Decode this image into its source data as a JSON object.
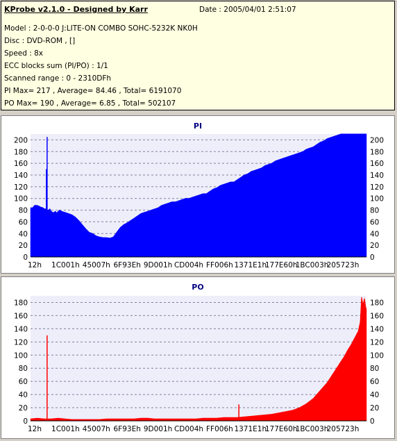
{
  "info": {
    "title": "KProbe v2.1.0 - Designed by Karr",
    "date": "Date : 2005/04/01 2:51:07",
    "lines": [
      "Model : 2-0-0-0 J:LITE-ON COMBO SOHC-5232K NK0H",
      "Disc : DVD-ROM ,  []",
      "Speed : 8x",
      "ECC blocks sum (PI/PO) : 1/1",
      "Scanned range : 0 - 2310DFh",
      "PI Max= 217 , Average= 84.46 , Total= 6191070",
      "PO Max= 190 , Average= 6.85 , Total= 502107"
    ]
  },
  "colors": {
    "pi": "#0000ff",
    "po": "#ff0000",
    "plot_bg": "#eeeefa",
    "title": "#000080"
  },
  "chart_data": [
    {
      "type": "area",
      "title": "PI",
      "x_tick_labels": [
        "12h",
        "1C001h",
        "45007h",
        "6F93Eh",
        "9D001h",
        "CD004h",
        "FF006h",
        "1371E1h",
        "177E60h",
        "1BC003h",
        "205723h"
      ],
      "ylim": [
        0,
        210
      ],
      "y_ticks": [
        0,
        20,
        40,
        60,
        80,
        100,
        120,
        140,
        160,
        180,
        200
      ],
      "grid": true,
      "series": [
        {
          "x": [
            0,
            3,
            6,
            9,
            12,
            15,
            18,
            20,
            22,
            24,
            26,
            28,
            30,
            32,
            34,
            36,
            38,
            40,
            42,
            45,
            50,
            55,
            60,
            65,
            70,
            75,
            80,
            85,
            90,
            95,
            100,
            105,
            110,
            115,
            120,
            125,
            130,
            135,
            140,
            145,
            150,
            155,
            160,
            165,
            170,
            175,
            180,
            185,
            190,
            195,
            200,
            205,
            210,
            215,
            220,
            225,
            230,
            235,
            240,
            245,
            250,
            255,
            260,
            265,
            270,
            275,
            280,
            285,
            290,
            295,
            300,
            305,
            310,
            315,
            320,
            325,
            330,
            335,
            340,
            345,
            350,
            355,
            360,
            365,
            370,
            375,
            380,
            385,
            390,
            395,
            400,
            405,
            410,
            415,
            420,
            425,
            430,
            435,
            440,
            445,
            450,
            455,
            460,
            465,
            470,
            475,
            480,
            484,
            487
          ],
          "values": [
            84,
            84,
            88,
            88,
            87,
            85,
            84,
            82,
            82,
            80,
            80,
            82,
            78,
            76,
            76,
            78,
            75,
            78,
            80,
            78,
            76,
            74,
            72,
            68,
            62,
            55,
            48,
            42,
            40,
            36,
            34,
            33,
            33,
            32,
            34,
            42,
            50,
            55,
            58,
            62,
            66,
            70,
            74,
            76,
            78,
            80,
            82,
            84,
            88,
            90,
            92,
            94,
            94,
            96,
            98,
            100,
            100,
            102,
            104,
            106,
            108,
            108,
            112,
            116,
            118,
            122,
            124,
            126,
            128,
            128,
            132,
            136,
            140,
            142,
            146,
            148,
            150,
            152,
            156,
            158,
            160,
            164,
            166,
            168,
            170,
            172,
            174,
            176,
            178,
            180,
            184,
            186,
            188,
            192,
            196,
            198,
            202,
            204,
            206,
            208,
            210,
            210,
            210,
            210,
            210,
            210,
            210,
            210,
            210
          ]
        }
      ],
      "spikes": [
        {
          "x": 24,
          "value": 205
        },
        {
          "x": 23,
          "value": 150
        }
      ]
    },
    {
      "type": "area",
      "title": "PO",
      "x_tick_labels": [
        "12h",
        "1C001h",
        "45007h",
        "6F93Eh",
        "9D001h",
        "CD004h",
        "FF006h",
        "1371E1h",
        "177E60h",
        "1BC003h",
        "205723h"
      ],
      "ylim": [
        0,
        190
      ],
      "y_ticks": [
        0,
        20,
        40,
        60,
        80,
        100,
        120,
        140,
        160,
        180
      ],
      "grid": true,
      "series": [
        {
          "x": [
            0,
            10,
            20,
            30,
            40,
            50,
            60,
            70,
            80,
            90,
            100,
            110,
            120,
            130,
            140,
            150,
            160,
            170,
            180,
            190,
            200,
            210,
            220,
            230,
            240,
            250,
            260,
            270,
            280,
            290,
            300,
            310,
            320,
            330,
            340,
            350,
            360,
            370,
            380,
            390,
            400,
            410,
            415,
            420,
            425,
            430,
            435,
            440,
            445,
            450,
            455,
            460,
            465,
            470,
            475,
            478,
            480,
            482,
            484,
            486,
            487
          ],
          "values": [
            3,
            4,
            3,
            3,
            4,
            3,
            2,
            2,
            2,
            2,
            2,
            3,
            3,
            3,
            3,
            3,
            4,
            4,
            3,
            3,
            3,
            3,
            3,
            3,
            3,
            4,
            4,
            4,
            5,
            5,
            5,
            6,
            7,
            8,
            9,
            10,
            12,
            14,
            16,
            20,
            26,
            34,
            40,
            46,
            52,
            58,
            66,
            74,
            82,
            90,
            98,
            108,
            116,
            126,
            136,
            150,
            188,
            176,
            186,
            172,
            170
          ]
        }
      ],
      "spikes": [
        {
          "x": 24,
          "value": 130
        },
        {
          "x": 302,
          "value": 25
        }
      ]
    }
  ]
}
